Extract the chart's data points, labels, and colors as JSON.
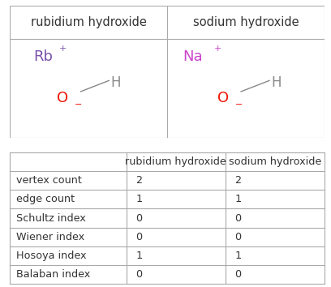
{
  "col1_header": "rubidium hydroxide",
  "col2_header": "sodium hydroxide",
  "rows": [
    {
      "label": "vertex count",
      "val1": "2",
      "val2": "2"
    },
    {
      "label": "edge count",
      "val1": "1",
      "val2": "1"
    },
    {
      "label": "Schultz index",
      "val1": "0",
      "val2": "0"
    },
    {
      "label": "Wiener index",
      "val1": "0",
      "val2": "0"
    },
    {
      "label": "Hosoya index",
      "val1": "1",
      "val2": "1"
    },
    {
      "label": "Balaban index",
      "val1": "0",
      "val2": "0"
    }
  ],
  "rb_color": "#7B52AB",
  "na_color": "#CC44CC",
  "o_color": "#EE1100",
  "h_color": "#888888",
  "bg_color": "#ffffff",
  "border_color": "#aaaaaa",
  "text_color": "#333333"
}
